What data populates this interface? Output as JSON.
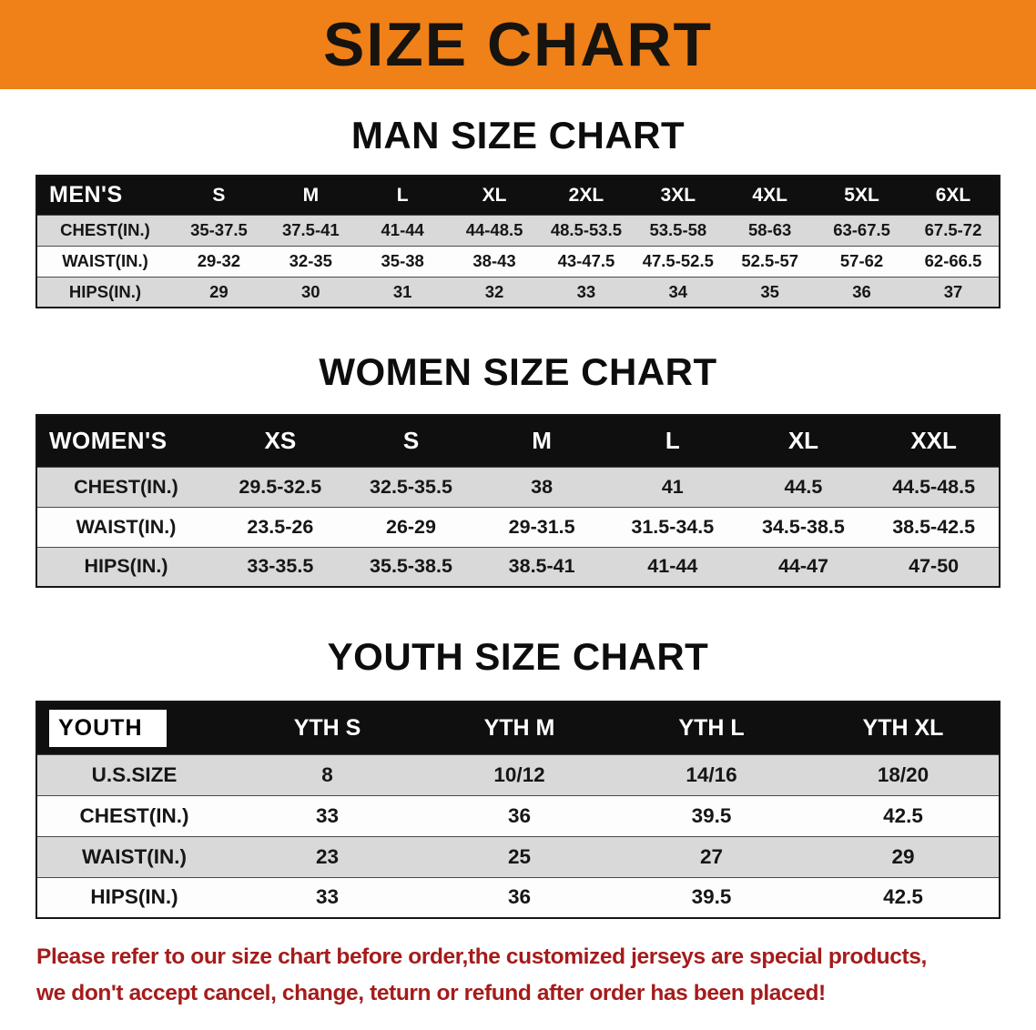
{
  "banner": {
    "title": "SIZE CHART",
    "background_color": "#f08018",
    "text_color": "#17130e"
  },
  "chart_data": [
    {
      "type": "table",
      "title": "MAN SIZE CHART",
      "header": [
        "MEN'S",
        "S",
        "M",
        "L",
        "XL",
        "2XL",
        "3XL",
        "4XL",
        "5XL",
        "6XL"
      ],
      "rows": [
        [
          "CHEST(IN.)",
          "35-37.5",
          "37.5-41",
          "41-44",
          "44-48.5",
          "48.5-53.5",
          "53.5-58",
          "58-63",
          "63-67.5",
          "67.5-72"
        ],
        [
          "WAIST(IN.)",
          "29-32",
          "32-35",
          "35-38",
          "38-43",
          "43-47.5",
          "47.5-52.5",
          "52.5-57",
          "57-62",
          "62-66.5"
        ],
        [
          "HIPS(IN.)",
          "29",
          "30",
          "31",
          "32",
          "33",
          "34",
          "35",
          "36",
          "37"
        ]
      ]
    },
    {
      "type": "table",
      "title": "WOMEN SIZE CHART",
      "header": [
        "WOMEN'S",
        "XS",
        "S",
        "M",
        "L",
        "XL",
        "XXL"
      ],
      "rows": [
        [
          "CHEST(IN.)",
          "29.5-32.5",
          "32.5-35.5",
          "38",
          "41",
          "44.5",
          "44.5-48.5"
        ],
        [
          "WAIST(IN.)",
          "23.5-26",
          "26-29",
          "29-31.5",
          "31.5-34.5",
          "34.5-38.5",
          "38.5-42.5"
        ],
        [
          "HIPS(IN.)",
          "33-35.5",
          "35.5-38.5",
          "38.5-41",
          "41-44",
          "44-47",
          "47-50"
        ]
      ]
    },
    {
      "type": "table",
      "title": "YOUTH SIZE CHART",
      "header": [
        "YOUTH",
        "YTH S",
        "YTH M",
        "YTH L",
        "YTH XL"
      ],
      "rows": [
        [
          "U.S.SIZE",
          "8",
          "10/12",
          "14/16",
          "18/20"
        ],
        [
          "CHEST(IN.)",
          "33",
          "36",
          "39.5",
          "42.5"
        ],
        [
          "WAIST(IN.)",
          "23",
          "25",
          "27",
          "29"
        ],
        [
          "HIPS(IN.)",
          "33",
          "36",
          "39.5",
          "42.5"
        ]
      ]
    }
  ],
  "disclaimer": {
    "line1": "Please refer to our size chart before order,the customized jerseys are special products,",
    "line2": "we don't accept cancel, change, teturn or refund after order has been placed!",
    "text_color": "#a51b1b"
  }
}
